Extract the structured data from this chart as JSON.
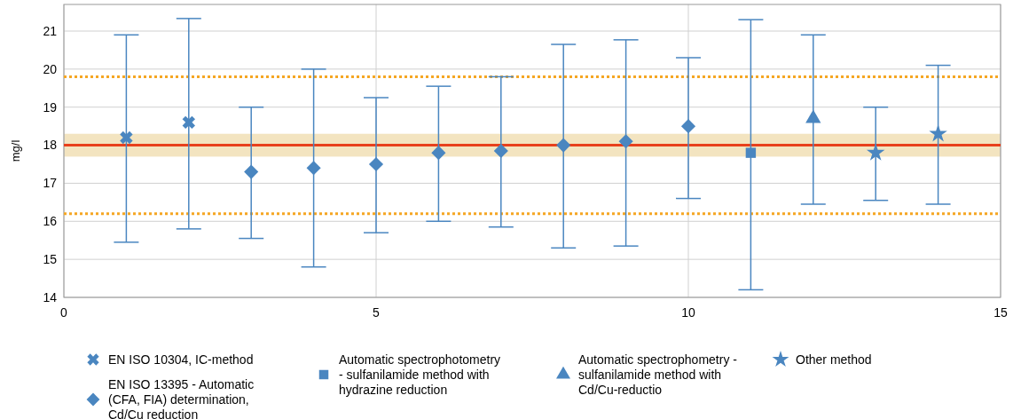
{
  "chart_data": {
    "type": "scatter",
    "ylabel": "mg/l",
    "xlim": [
      0,
      15
    ],
    "xticks": [
      0,
      5,
      10,
      15
    ],
    "ylim": [
      14,
      21.7
    ],
    "yticks": [
      14,
      15,
      16,
      17,
      18,
      19,
      20,
      21
    ],
    "grid": true,
    "legend": "bottom",
    "series": [
      {
        "name": "EN ISO 10304, IC-method",
        "color": "#4a86c0",
        "marker": "cross",
        "x": [
          1,
          2
        ],
        "values": [
          18.2,
          18.6
        ],
        "errors": [
          [
            15.45,
            20.9
          ],
          [
            15.8,
            21.33
          ]
        ]
      },
      {
        "name": "EN ISO 13395 - Automatic (CFA, FIA) determination, Cd/Cu reduction",
        "color": "#4a86c0",
        "marker": "diamond",
        "x": [
          3,
          4,
          5,
          6,
          7,
          8,
          9,
          10
        ],
        "values": [
          17.3,
          17.4,
          17.5,
          17.8,
          17.85,
          18.0,
          18.1,
          18.5
        ],
        "errors": [
          [
            15.55,
            19.0
          ],
          [
            14.8,
            20.0
          ],
          [
            15.7,
            19.25
          ],
          [
            16.0,
            19.55
          ],
          [
            15.85,
            19.8
          ],
          [
            15.3,
            20.65
          ],
          [
            15.35,
            20.77
          ],
          [
            16.6,
            20.3
          ]
        ]
      },
      {
        "name": "Automatic spectrophotometry - sulfanilamide method with hydrazine reduction",
        "color": "#4a86c0",
        "marker": "square",
        "x": [
          11
        ],
        "values": [
          17.8
        ],
        "errors": [
          [
            14.2,
            21.3
          ]
        ]
      },
      {
        "name": "Automatic spectrophometry - sulfanilamide method with Cd/Cu-reductio",
        "color": "#4a86c0",
        "marker": "triangle",
        "x": [
          12
        ],
        "values": [
          18.7
        ],
        "errors": [
          [
            16.45,
            20.9
          ]
        ]
      },
      {
        "name": "Other method",
        "color": "#4a86c0",
        "marker": "star",
        "x": [
          13,
          14
        ],
        "values": [
          17.8,
          18.3
        ],
        "errors": [
          [
            16.55,
            19.0
          ],
          [
            16.45,
            20.1
          ]
        ]
      }
    ],
    "ref_lines": [
      {
        "axis": "y",
        "value": 18.0,
        "color": "#e8401c",
        "line_style": "solid"
      },
      {
        "axis": "y",
        "value": 19.8,
        "color": "#f5a623",
        "line_style": "dotted"
      },
      {
        "axis": "y",
        "value": 16.2,
        "color": "#f5a623",
        "line_style": "dotted"
      }
    ],
    "bands": [
      {
        "axis": "y",
        "from": 17.7,
        "to": 18.3,
        "color": "#f3e4c0"
      }
    ]
  }
}
